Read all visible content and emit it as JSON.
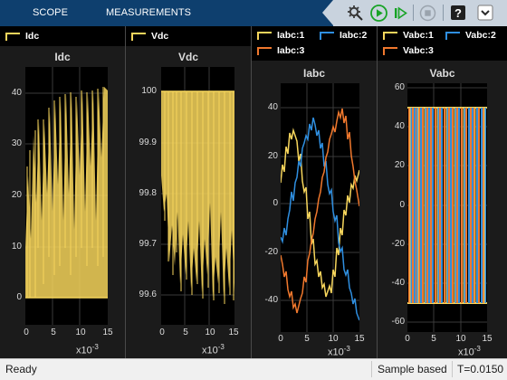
{
  "toolstrip": {
    "tabs": [
      {
        "label": "SCOPE"
      },
      {
        "label": "MEASUREMENTS"
      }
    ],
    "buttons": [
      {
        "name": "settings-gear-icon"
      },
      {
        "name": "run-icon"
      },
      {
        "name": "step-forward-icon"
      },
      {
        "name": "stop-icon"
      },
      {
        "name": "help-icon"
      },
      {
        "name": "expand-icon"
      }
    ],
    "colors": {
      "bar": "#0e3f6e",
      "tools_bg": "#c9d3de",
      "run": "#17a325"
    }
  },
  "panels": [
    {
      "legend": [
        {
          "label": "Idc",
          "color": "#f6d55c"
        }
      ],
      "title": "Idc",
      "yticks": [
        "40",
        "30",
        "20",
        "10",
        "0"
      ],
      "xticks": [
        "0",
        "5",
        "10",
        "15"
      ],
      "xexp_base": "x10",
      "xexp_pow": "-3"
    },
    {
      "legend": [
        {
          "label": "Vdc",
          "color": "#f6d55c"
        }
      ],
      "title": "Vdc",
      "yticks": [
        "100",
        "99.9",
        "99.8",
        "99.7",
        "99.6"
      ],
      "xticks": [
        "0",
        "5",
        "10",
        "15"
      ],
      "xexp_base": "x10",
      "xexp_pow": "-3"
    },
    {
      "legend": [
        {
          "label": "Iabc:1",
          "color": "#f6d55c"
        },
        {
          "label": "Iabc:2",
          "color": "#2f8fe0"
        },
        {
          "label": "Iabc:3",
          "color": "#f0782d"
        }
      ],
      "title": "Iabc",
      "yticks": [
        "40",
        "20",
        "0",
        "-20",
        "-40"
      ],
      "xticks": [
        "0",
        "5",
        "10",
        "15"
      ],
      "xexp_base": "x10",
      "xexp_pow": "-3"
    },
    {
      "legend": [
        {
          "label": "Vabc:1",
          "color": "#f6d55c"
        },
        {
          "label": "Vabc:2",
          "color": "#2f8fe0"
        },
        {
          "label": "Vabc:3",
          "color": "#f0782d"
        }
      ],
      "title": "Vabc",
      "yticks": [
        "60",
        "40",
        "20",
        "0",
        "-20",
        "-40",
        "-60"
      ],
      "xticks": [
        "0",
        "5",
        "10",
        "15"
      ],
      "xexp_base": "x10",
      "xexp_pow": "-3"
    }
  ],
  "status": {
    "left": "Ready",
    "mode": "Sample based",
    "time": "T=0.0150"
  }
}
